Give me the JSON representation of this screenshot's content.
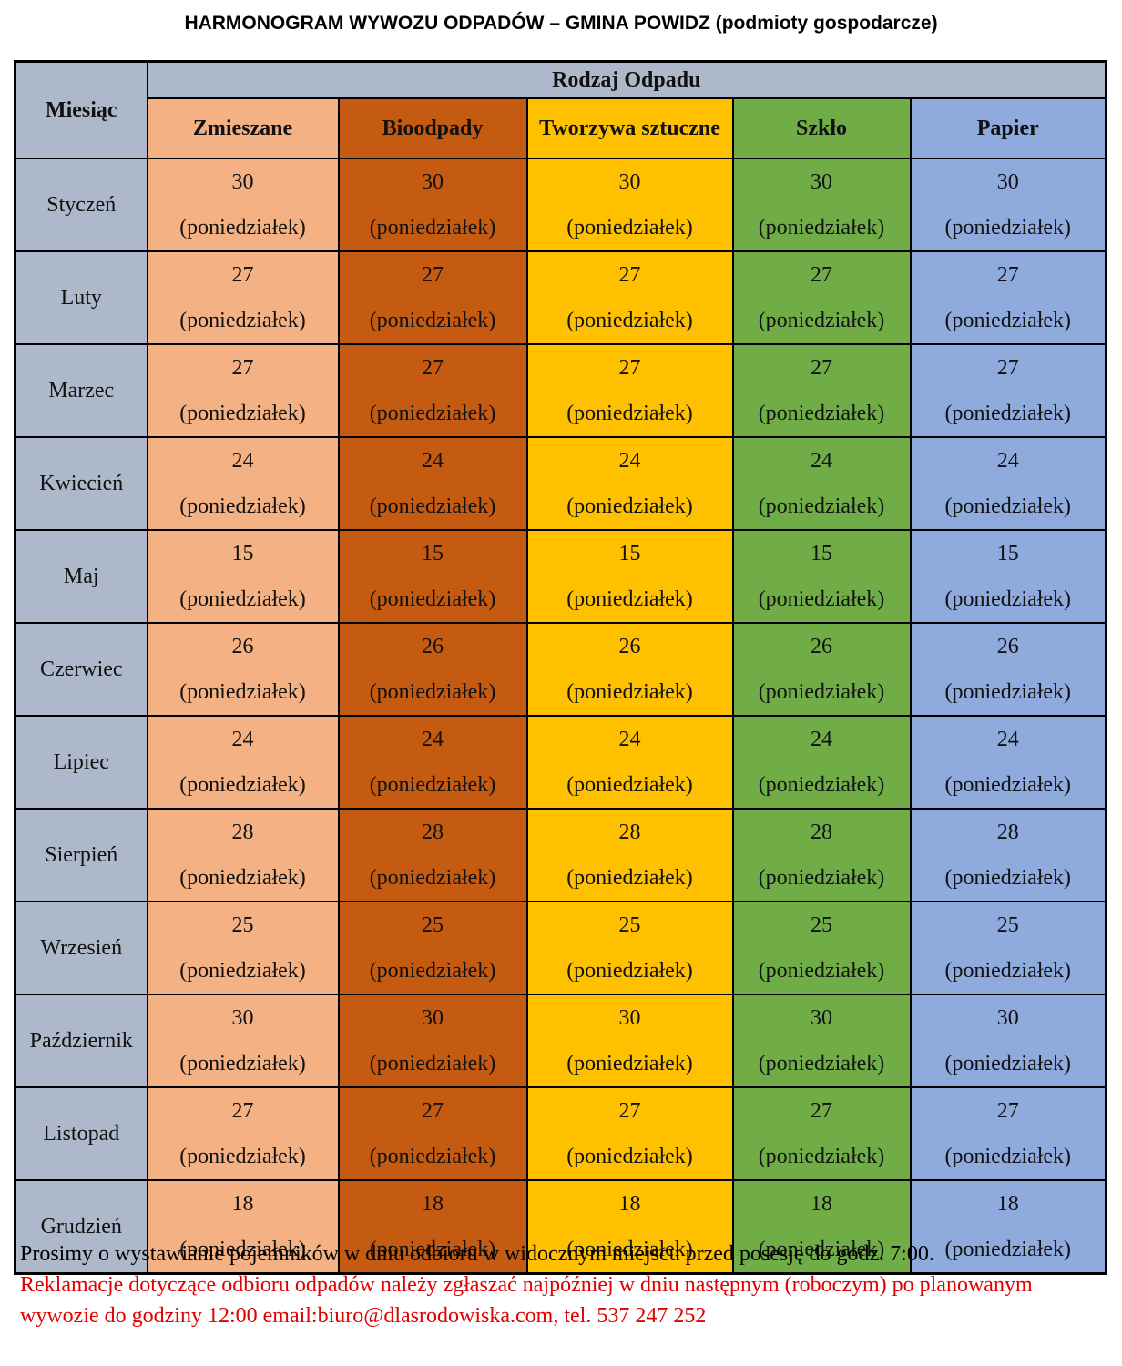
{
  "title": "HARMONOGRAM WYWOZU ODPADÓW – GMINA POWIDZ (podmioty gospodarcze)",
  "table": {
    "month_header": "Miesiąc",
    "group_header": "Rodzaj Odpadu",
    "waste_types": [
      {
        "label": "Zmieszane",
        "color": "#f4b183"
      },
      {
        "label": "Bioodpady",
        "color": "#c55a11"
      },
      {
        "label": "Tworzywa sztuczne",
        "color": "#ffc000"
      },
      {
        "label": "Szkło",
        "color": "#70ad47"
      },
      {
        "label": "Papier",
        "color": "#8faadc"
      }
    ],
    "rows": [
      {
        "month": "Styczeń",
        "day": "30",
        "weekday": "(poniedziałek)"
      },
      {
        "month": "Luty",
        "day": "27",
        "weekday": "(poniedziałek)"
      },
      {
        "month": "Marzec",
        "day": "27",
        "weekday": "(poniedziałek)"
      },
      {
        "month": "Kwiecień",
        "day": "24",
        "weekday": "(poniedziałek)"
      },
      {
        "month": "Maj",
        "day": "15",
        "weekday": "(poniedziałek)"
      },
      {
        "month": "Czerwiec",
        "day": "26",
        "weekday": "(poniedziałek)"
      },
      {
        "month": "Lipiec",
        "day": "24",
        "weekday": "(poniedziałek)"
      },
      {
        "month": "Sierpień",
        "day": "28",
        "weekday": "(poniedziałek)"
      },
      {
        "month": "Wrzesień",
        "day": "25",
        "weekday": "(poniedziałek)"
      },
      {
        "month": "Październik",
        "day": "30",
        "weekday": "(poniedziałek)"
      },
      {
        "month": "Listopad",
        "day": "27",
        "weekday": "(poniedziałek)"
      },
      {
        "month": "Grudzień",
        "day": "18",
        "weekday": "(poniedziałek)"
      }
    ]
  },
  "notes": {
    "info": "Prosimy o wystawianie pojemników w dniu odbioru w widocznym miejscu przed posesję do godz. 7:00.",
    "complaints": "Reklamacje dotyczące odbioru odpadów należy zgłaszać najpóźniej w dniu następnym (roboczym) po planowanym wywozie do godziny 12:00 email:biuro@dlasrodowiska.com, tel. 537 247 252"
  }
}
